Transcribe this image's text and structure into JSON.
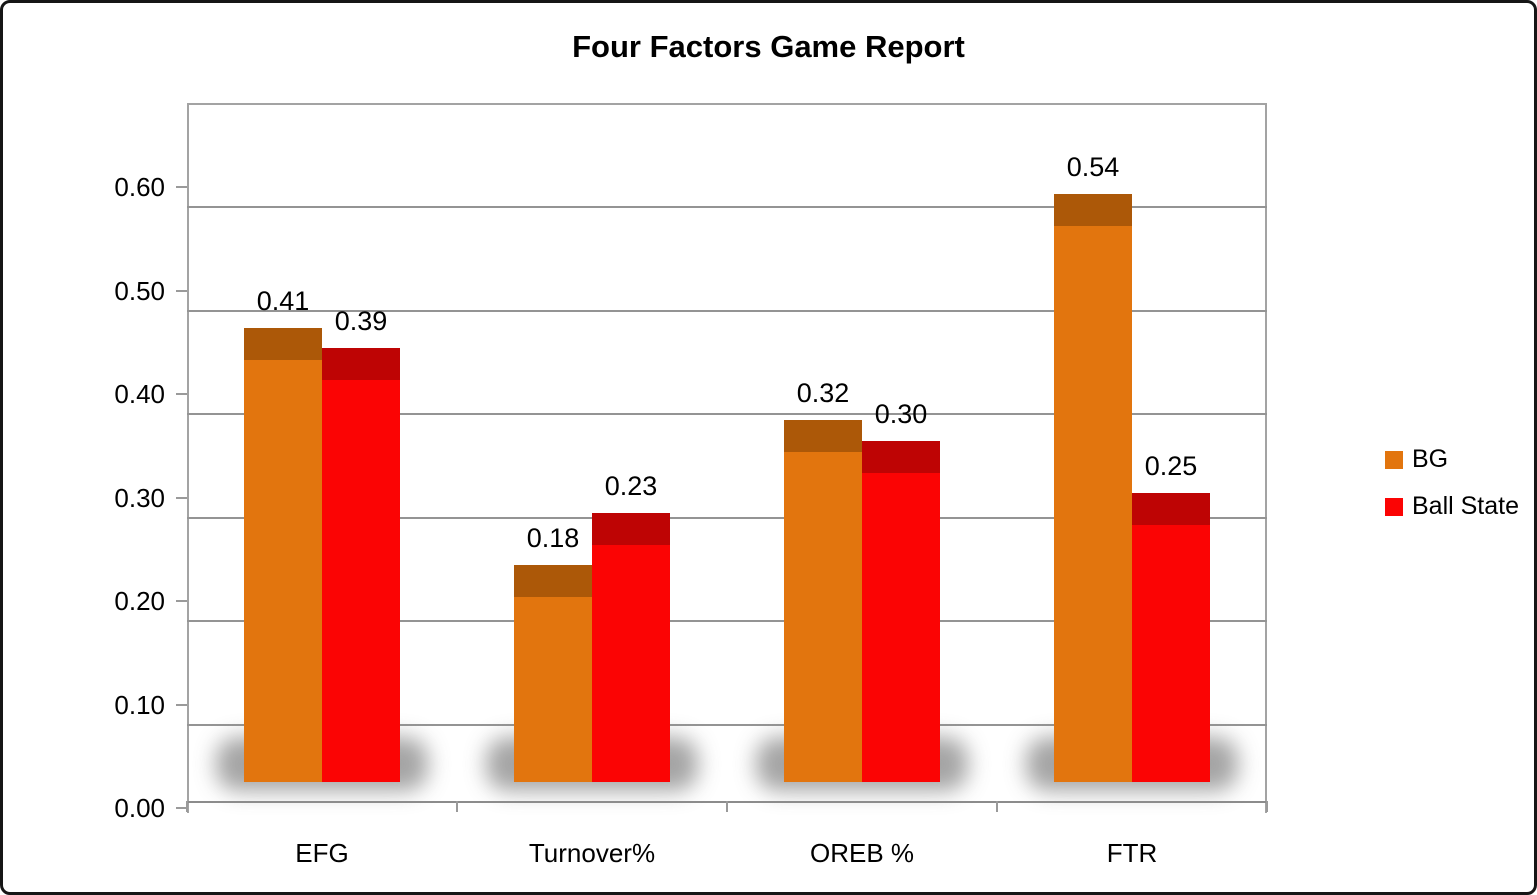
{
  "title": "Four Factors Game Report",
  "chart_data": {
    "type": "bar",
    "title": "Four Factors Game Report",
    "categories": [
      "EFG",
      "Turnover%",
      "OREB %",
      "FTR"
    ],
    "series": [
      {
        "name": "BG",
        "color": "#e2750e",
        "cap_color": "#ac5808",
        "values": [
          0.41,
          0.18,
          0.32,
          0.54
        ],
        "labels": [
          "0.41",
          "0.18",
          "0.32",
          "0.54"
        ]
      },
      {
        "name": "Ball State",
        "color": "#fb0404",
        "cap_color": "#be0404",
        "values": [
          0.39,
          0.23,
          0.3,
          0.25
        ],
        "labels": [
          "0.39",
          "0.23",
          "0.30",
          "0.25"
        ]
      }
    ],
    "ylim": [
      0.0,
      0.65
    ],
    "yticks": [
      0.0,
      0.1,
      0.2,
      0.3,
      0.4,
      0.5,
      0.6
    ],
    "ytick_labels": [
      "0.00",
      "0.10",
      "0.20",
      "0.30",
      "0.40",
      "0.50",
      "0.60"
    ],
    "grid": true,
    "grid_color": "#949494",
    "legend_position": "right",
    "data_labels": true,
    "style": "excel-3d-bevel-with-floor-shadows"
  },
  "figure": {
    "background": "#ffffff",
    "border_color": "#161616"
  }
}
